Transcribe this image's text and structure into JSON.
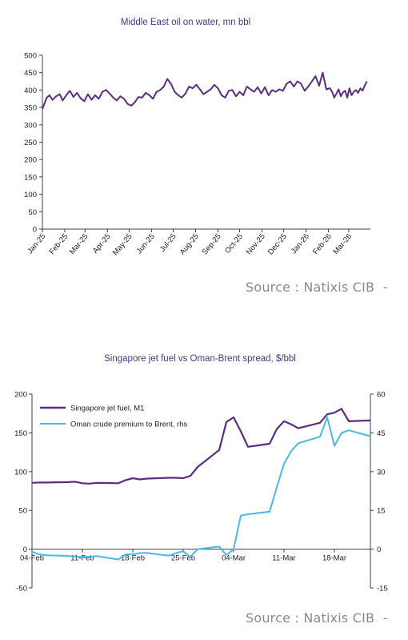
{
  "chart_data": [
    {
      "type": "line",
      "title": "Middle East oil on water, mn bbl",
      "xlabel": "",
      "ylabel": "",
      "ylim": [
        0,
        500
      ],
      "y_ticks": [
        0,
        50,
        100,
        150,
        200,
        250,
        300,
        350,
        400,
        450,
        500
      ],
      "x_tick_labels": [
        "Jan-25",
        "Feb-25",
        "Mar-25",
        "Apr-25",
        "May-25",
        "Jun-25",
        "Jul-25",
        "Aug-25",
        "Sep-25",
        "Oct-25",
        "Nov-25",
        "Dec-25",
        "Jan-26",
        "Feb-26",
        "Mar-26"
      ],
      "x_start": "2025-01-01",
      "x_end": "2026-03-31",
      "grid": false,
      "color": "#5b2d82",
      "series": [
        {
          "name": "",
          "x": [
            "2025-01-01",
            "2025-01-04",
            "2025-01-07",
            "2025-01-11",
            "2025-01-15",
            "2025-01-20",
            "2025-01-25",
            "2025-01-29",
            "2025-02-03",
            "2025-02-08",
            "2025-02-13",
            "2025-02-18",
            "2025-02-23",
            "2025-02-28",
            "2025-03-05",
            "2025-03-10",
            "2025-03-15",
            "2025-03-20",
            "2025-03-25",
            "2025-03-30",
            "2025-04-04",
            "2025-04-09",
            "2025-04-14",
            "2025-04-19",
            "2025-04-24",
            "2025-04-29",
            "2025-05-04",
            "2025-05-09",
            "2025-05-14",
            "2025-05-19",
            "2025-05-24",
            "2025-05-29",
            "2025-06-03",
            "2025-06-08",
            "2025-06-13",
            "2025-06-18",
            "2025-06-23",
            "2025-06-28",
            "2025-07-03",
            "2025-07-08",
            "2025-07-13",
            "2025-07-18",
            "2025-07-23",
            "2025-07-28",
            "2025-08-02",
            "2025-08-07",
            "2025-08-12",
            "2025-08-17",
            "2025-08-22",
            "2025-08-27",
            "2025-09-01",
            "2025-09-06",
            "2025-09-11",
            "2025-09-16",
            "2025-09-21",
            "2025-09-26",
            "2025-10-01",
            "2025-10-06",
            "2025-10-11",
            "2025-10-16",
            "2025-10-21",
            "2025-10-26",
            "2025-10-31",
            "2025-11-05",
            "2025-11-10",
            "2025-11-15",
            "2025-11-20",
            "2025-11-25",
            "2025-11-30",
            "2025-12-05",
            "2025-12-10",
            "2025-12-15",
            "2025-12-20",
            "2025-12-25",
            "2025-12-30",
            "2026-01-04",
            "2026-01-09",
            "2026-01-14",
            "2026-01-19",
            "2026-01-24",
            "2026-01-29",
            "2026-02-03",
            "2026-02-06",
            "2026-02-09",
            "2026-02-12",
            "2026-02-15",
            "2026-02-18",
            "2026-02-21",
            "2026-02-24",
            "2026-02-27",
            "2026-03-02",
            "2026-03-05",
            "2026-03-08",
            "2026-03-11",
            "2026-03-14",
            "2026-03-17",
            "2026-03-20",
            "2026-03-23",
            "2026-03-26"
          ],
          "values": [
            345,
            362,
            378,
            385,
            372,
            382,
            388,
            370,
            385,
            398,
            380,
            392,
            376,
            368,
            388,
            372,
            385,
            375,
            395,
            400,
            390,
            378,
            370,
            382,
            375,
            360,
            355,
            365,
            380,
            378,
            392,
            385,
            375,
            395,
            400,
            410,
            432,
            418,
            395,
            385,
            378,
            390,
            410,
            405,
            415,
            402,
            388,
            395,
            402,
            415,
            405,
            385,
            378,
            398,
            400,
            382,
            395,
            385,
            410,
            402,
            395,
            408,
            390,
            408,
            385,
            400,
            395,
            402,
            398,
            418,
            425,
            410,
            425,
            418,
            398,
            410,
            425,
            440,
            412,
            450,
            402,
            405,
            395,
            378,
            390,
            402,
            382,
            393,
            398,
            378,
            405,
            385,
            395,
            400,
            392,
            405,
            398,
            412,
            425
          ]
        }
      ]
    },
    {
      "type": "line",
      "title": "Singapore jet fuel vs Oman-Brent spread, $/bbl",
      "xlabel": "",
      "ylabel": "",
      "ylim": [
        -50,
        200
      ],
      "y2lim": [
        -15,
        60
      ],
      "y_ticks": [
        -50,
        0,
        50,
        100,
        150,
        200
      ],
      "y2_ticks": [
        -15,
        0,
        15,
        30,
        45,
        60
      ],
      "x_tick_labels": [
        "04-Feb",
        "11-Feb",
        "18-Feb",
        "25-Feb",
        "04-Mar",
        "11-Mar",
        "18-Mar"
      ],
      "x_start": "2026-02-04",
      "x_end": "2026-03-23",
      "grid": false,
      "legend": "top-left",
      "series": [
        {
          "name": "Singapore jet fuel, M1",
          "axis": "left",
          "color": "#5b2d82",
          "x": [
            "2026-02-04",
            "2026-02-05",
            "2026-02-06",
            "2026-02-09",
            "2026-02-10",
            "2026-02-11",
            "2026-02-12",
            "2026-02-13",
            "2026-02-16",
            "2026-02-17",
            "2026-02-18",
            "2026-02-19",
            "2026-02-20",
            "2026-02-23",
            "2026-02-24",
            "2026-02-25",
            "2026-02-26",
            "2026-02-27",
            "2026-03-02",
            "2026-03-03",
            "2026-03-04",
            "2026-03-05",
            "2026-03-06",
            "2026-03-09",
            "2026-03-10",
            "2026-03-11",
            "2026-03-12",
            "2026-03-13",
            "2026-03-16",
            "2026-03-17",
            "2026-03-18",
            "2026-03-19",
            "2026-03-20",
            "2026-03-23"
          ],
          "values": [
            85.5,
            86,
            86,
            86.5,
            87,
            85,
            84.5,
            85.5,
            85,
            89,
            91.5,
            90,
            91,
            92,
            92,
            91.5,
            94.5,
            106,
            128,
            164,
            170,
            152,
            132,
            136,
            155,
            165,
            161,
            156,
            163,
            174,
            176,
            181,
            165,
            166
          ]
        },
        {
          "name": "Oman crude premium to Brent, rhs",
          "axis": "right",
          "color": "#4ab8e8",
          "x": [
            "2026-02-04",
            "2026-02-05",
            "2026-02-06",
            "2026-02-09",
            "2026-02-10",
            "2026-02-11",
            "2026-02-12",
            "2026-02-13",
            "2026-02-16",
            "2026-02-17",
            "2026-02-18",
            "2026-02-19",
            "2026-02-20",
            "2026-02-23",
            "2026-02-24",
            "2026-02-25",
            "2026-02-26",
            "2026-02-27",
            "2026-03-02",
            "2026-03-03",
            "2026-03-04",
            "2026-03-05",
            "2026-03-06",
            "2026-03-09",
            "2026-03-10",
            "2026-03-11",
            "2026-03-12",
            "2026-03-13",
            "2026-03-16",
            "2026-03-17",
            "2026-03-18",
            "2026-03-19",
            "2026-03-20",
            "2026-03-23"
          ],
          "values": [
            -1,
            -2,
            -2.4,
            -2.6,
            -3,
            -3,
            -2.9,
            -2.7,
            -4,
            -2,
            -2,
            -1.5,
            -1.5,
            -2.5,
            -1.5,
            -0.8,
            -3,
            0,
            1,
            -2.3,
            0,
            13,
            13.5,
            14.5,
            24,
            33,
            38,
            41,
            43.5,
            51,
            40,
            45,
            46,
            43.7
          ]
        }
      ]
    }
  ],
  "sources": [
    "Source : Natixis CIB  -",
    "Source : Natixis CIB  -"
  ]
}
